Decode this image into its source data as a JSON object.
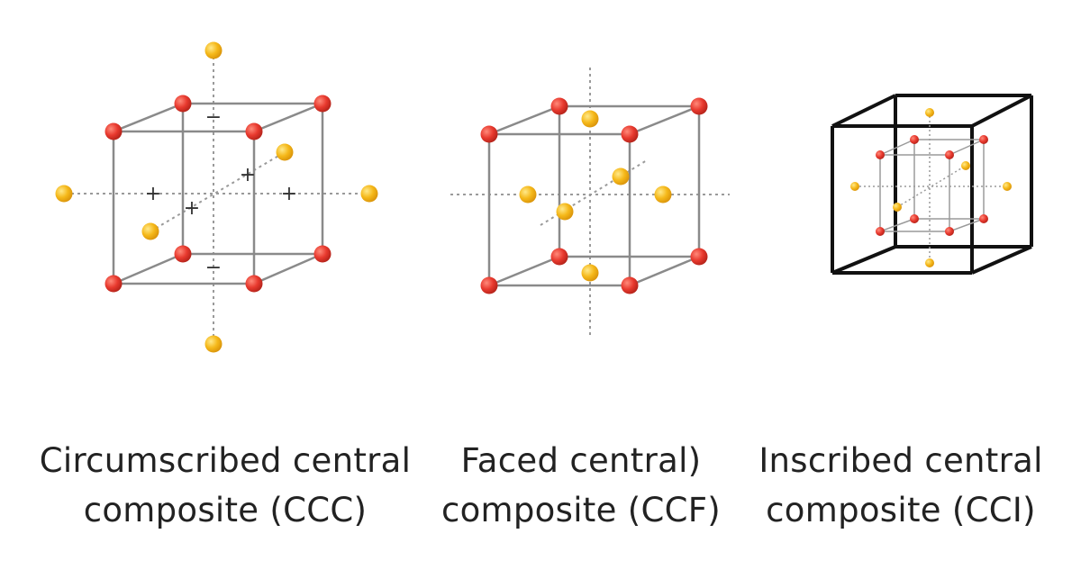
{
  "designs": [
    {
      "id": "ccc",
      "caption_line1": "Circumscribed central",
      "caption_line2": "composite (CCC)"
    },
    {
      "id": "ccf",
      "caption_line1": "Faced central)",
      "caption_line2": "composite (CCF)"
    },
    {
      "id": "cci",
      "caption_line1": "Inscribed central",
      "caption_line2": "composite (CCI)"
    }
  ],
  "axis_marks": {
    "plus": "+",
    "minus": "−"
  },
  "colors": {
    "factorial_point": "#e8392e",
    "axial_point": "#f5b819",
    "cube_edge": "#8a8a8a",
    "outer_cube_edge": "#111111",
    "axis_line": "#9a9a9a",
    "caption_text": "#222222"
  }
}
